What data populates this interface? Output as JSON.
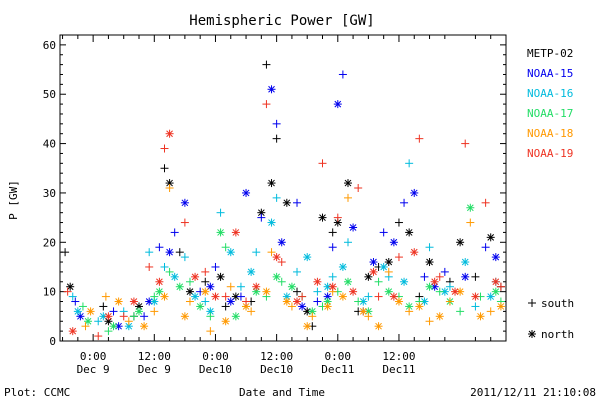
{
  "chart_data": {
    "type": "scatter",
    "title": "Hemispheric Power [GW]",
    "ylabel": "P [GW]",
    "xlabel": "Date and Time",
    "ylim": [
      0,
      62
    ],
    "xlim_hours": [
      -6.5,
      81
    ],
    "y_ticks": [
      0,
      10,
      20,
      30,
      40,
      50,
      60
    ],
    "x_ticks": [
      {
        "hour": 0,
        "time": "0:00",
        "date": "Dec 9"
      },
      {
        "hour": 12,
        "time": "12:00",
        "date": "Dec 9"
      },
      {
        "hour": 24,
        "time": "0:00",
        "date": "Dec10"
      },
      {
        "hour": 36,
        "time": "12:00",
        "date": "Dec10"
      },
      {
        "hour": 48,
        "time": "0:00",
        "date": "Dec11"
      },
      {
        "hour": 60,
        "time": "12:00",
        "date": "Dec11"
      }
    ],
    "markers": {
      "south": "+",
      "north": "*"
    },
    "marker_legend": [
      {
        "symbol": "+",
        "label": "south"
      },
      {
        "symbol": "*",
        "label": "north"
      }
    ],
    "series": [
      {
        "name": "METP-02",
        "color": "#000000",
        "south": [
          [
            -5.5,
            18
          ],
          [
            2,
            7
          ],
          [
            8,
            5
          ],
          [
            14,
            35
          ],
          [
            17,
            18
          ],
          [
            22,
            12
          ],
          [
            26,
            7
          ],
          [
            31,
            8
          ],
          [
            34,
            56
          ],
          [
            36,
            41
          ],
          [
            40,
            10
          ],
          [
            43,
            3
          ],
          [
            47,
            22
          ],
          [
            52,
            6
          ],
          [
            56,
            15
          ],
          [
            60,
            24
          ],
          [
            64,
            9
          ],
          [
            70,
            12
          ],
          [
            75,
            13
          ],
          [
            80,
            11
          ]
        ],
        "north": [
          [
            -4.5,
            11
          ],
          [
            3,
            4
          ],
          [
            9,
            7
          ],
          [
            15,
            32
          ],
          [
            19,
            10
          ],
          [
            25,
            13
          ],
          [
            28,
            9
          ],
          [
            33,
            26
          ],
          [
            35,
            32
          ],
          [
            38,
            28
          ],
          [
            42,
            6
          ],
          [
            45,
            25
          ],
          [
            48,
            24
          ],
          [
            50,
            32
          ],
          [
            54,
            13
          ],
          [
            58,
            16
          ],
          [
            62,
            22
          ],
          [
            66,
            16
          ],
          [
            72,
            20
          ],
          [
            78,
            21
          ]
        ]
      },
      {
        "name": "NOAA-15",
        "color": "#0000ee",
        "south": [
          [
            -3.5,
            8
          ],
          [
            4,
            6
          ],
          [
            10,
            5
          ],
          [
            13,
            19
          ],
          [
            16,
            22
          ],
          [
            21,
            10
          ],
          [
            24,
            15
          ],
          [
            29,
            9
          ],
          [
            33,
            25
          ],
          [
            36,
            44
          ],
          [
            40,
            28
          ],
          [
            44,
            8
          ],
          [
            47,
            19
          ],
          [
            49,
            54
          ],
          [
            53,
            6
          ],
          [
            57,
            22
          ],
          [
            61,
            28
          ],
          [
            65,
            13
          ],
          [
            69,
            14
          ],
          [
            77,
            19
          ]
        ],
        "north": [
          [
            -2.5,
            5
          ],
          [
            5,
            3
          ],
          [
            11,
            8
          ],
          [
            15,
            18
          ],
          [
            18,
            28
          ],
          [
            23,
            11
          ],
          [
            27,
            8
          ],
          [
            30,
            30
          ],
          [
            35,
            51
          ],
          [
            37,
            20
          ],
          [
            41,
            7
          ],
          [
            46,
            9
          ],
          [
            48,
            48
          ],
          [
            51,
            23
          ],
          [
            55,
            16
          ],
          [
            59,
            20
          ],
          [
            63,
            30
          ],
          [
            67,
            11
          ],
          [
            73,
            13
          ],
          [
            79,
            17
          ]
        ]
      },
      {
        "name": "NOAA-16",
        "color": "#00bbdd",
        "south": [
          [
            -4,
            9
          ],
          [
            1,
            4
          ],
          [
            6,
            6
          ],
          [
            11,
            18
          ],
          [
            14,
            15
          ],
          [
            18,
            17
          ],
          [
            22,
            8
          ],
          [
            25,
            26
          ],
          [
            29,
            11
          ],
          [
            32,
            18
          ],
          [
            36,
            29
          ],
          [
            40,
            14
          ],
          [
            44,
            10
          ],
          [
            47,
            13
          ],
          [
            50,
            20
          ],
          [
            54,
            9
          ],
          [
            58,
            13
          ],
          [
            62,
            36
          ],
          [
            66,
            19
          ],
          [
            70,
            11
          ],
          [
            75,
            7
          ],
          [
            79,
            12
          ]
        ],
        "north": [
          [
            -3,
            6
          ],
          [
            2,
            5
          ],
          [
            7,
            3
          ],
          [
            12,
            8
          ],
          [
            16,
            13
          ],
          [
            20,
            9
          ],
          [
            23,
            6
          ],
          [
            27,
            18
          ],
          [
            31,
            14
          ],
          [
            35,
            24
          ],
          [
            38,
            9
          ],
          [
            42,
            17
          ],
          [
            46,
            11
          ],
          [
            49,
            15
          ],
          [
            53,
            8
          ],
          [
            57,
            15
          ],
          [
            61,
            12
          ],
          [
            65,
            8
          ],
          [
            69,
            10
          ],
          [
            73,
            16
          ],
          [
            78,
            9
          ]
        ]
      },
      {
        "name": "NOAA-17",
        "color": "#22dd66",
        "south": [
          [
            -2,
            7
          ],
          [
            3,
            2
          ],
          [
            8,
            5
          ],
          [
            12,
            9
          ],
          [
            15,
            14
          ],
          [
            19,
            12
          ],
          [
            23,
            5
          ],
          [
            26,
            19
          ],
          [
            30,
            7
          ],
          [
            34,
            9
          ],
          [
            37,
            12
          ],
          [
            41,
            9
          ],
          [
            45,
            7
          ],
          [
            48,
            10
          ],
          [
            52,
            8
          ],
          [
            56,
            12
          ],
          [
            60,
            9
          ],
          [
            64,
            8
          ],
          [
            68,
            10
          ],
          [
            72,
            6
          ],
          [
            76,
            9
          ],
          [
            80,
            8
          ]
        ],
        "north": [
          [
            -1,
            4
          ],
          [
            4,
            3
          ],
          [
            9,
            6
          ],
          [
            13,
            10
          ],
          [
            17,
            11
          ],
          [
            21,
            7
          ],
          [
            25,
            22
          ],
          [
            28,
            5
          ],
          [
            32,
            10
          ],
          [
            36,
            13
          ],
          [
            39,
            11
          ],
          [
            43,
            6
          ],
          [
            46,
            8
          ],
          [
            50,
            12
          ],
          [
            54,
            6
          ],
          [
            58,
            10
          ],
          [
            62,
            7
          ],
          [
            66,
            11
          ],
          [
            70,
            8
          ],
          [
            74,
            27
          ],
          [
            79,
            10
          ]
        ]
      },
      {
        "name": "NOAA-18",
        "color": "#ff9900",
        "south": [
          [
            -1.5,
            3
          ],
          [
            2.5,
            9
          ],
          [
            7,
            4
          ],
          [
            12,
            6
          ],
          [
            15,
            31
          ],
          [
            19,
            8
          ],
          [
            23,
            2
          ],
          [
            27,
            11
          ],
          [
            31,
            6
          ],
          [
            35,
            18
          ],
          [
            39,
            7
          ],
          [
            43,
            5
          ],
          [
            47,
            10
          ],
          [
            50,
            29
          ],
          [
            54,
            5
          ],
          [
            58,
            14
          ],
          [
            62,
            6
          ],
          [
            66,
            4
          ],
          [
            70,
            8
          ],
          [
            74,
            24
          ],
          [
            78,
            6
          ]
        ],
        "north": [
          [
            -0.5,
            6
          ],
          [
            5,
            8
          ],
          [
            10,
            3
          ],
          [
            14,
            9
          ],
          [
            18,
            5
          ],
          [
            22,
            10
          ],
          [
            26,
            4
          ],
          [
            30,
            7
          ],
          [
            34,
            10
          ],
          [
            38,
            8
          ],
          [
            42,
            3
          ],
          [
            46,
            7
          ],
          [
            49,
            9
          ],
          [
            53,
            6
          ],
          [
            56,
            3
          ],
          [
            60,
            8
          ],
          [
            64,
            7
          ],
          [
            68,
            5
          ],
          [
            72,
            10
          ],
          [
            76,
            5
          ],
          [
            80,
            7
          ]
        ]
      },
      {
        "name": "NOAA-19",
        "color": "#ee3322",
        "south": [
          [
            -5,
            10
          ],
          [
            1,
            1
          ],
          [
            6,
            5
          ],
          [
            11,
            15
          ],
          [
            14,
            39
          ],
          [
            18,
            24
          ],
          [
            22,
            14
          ],
          [
            26,
            9
          ],
          [
            30,
            8
          ],
          [
            34,
            48
          ],
          [
            37,
            16
          ],
          [
            41,
            9
          ],
          [
            45,
            36
          ],
          [
            48,
            25
          ],
          [
            52,
            31
          ],
          [
            56,
            9
          ],
          [
            60,
            17
          ],
          [
            64,
            41
          ],
          [
            68,
            13
          ],
          [
            73,
            40
          ],
          [
            77,
            28
          ],
          [
            80,
            11
          ]
        ],
        "north": [
          [
            -4,
            2
          ],
          [
            3,
            5
          ],
          [
            8,
            8
          ],
          [
            13,
            12
          ],
          [
            15,
            42
          ],
          [
            20,
            13
          ],
          [
            24,
            9
          ],
          [
            28,
            22
          ],
          [
            32,
            11
          ],
          [
            36,
            17
          ],
          [
            40,
            8
          ],
          [
            44,
            12
          ],
          [
            47,
            11
          ],
          [
            51,
            10
          ],
          [
            55,
            14
          ],
          [
            59,
            9
          ],
          [
            63,
            18
          ],
          [
            67,
            12
          ],
          [
            71,
            10
          ],
          [
            75,
            9
          ],
          [
            79,
            12
          ]
        ]
      }
    ]
  },
  "footer": {
    "left": "Plot: CCMC",
    "right": "2011/12/11 21:10:08"
  }
}
